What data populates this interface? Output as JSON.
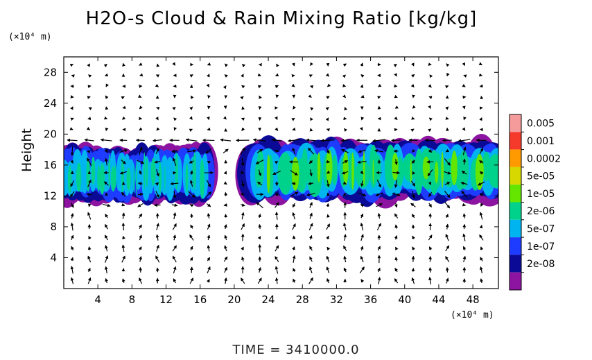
{
  "chart_data": {
    "type": "heatmap",
    "title": "H2O-s Cloud & Rain Mixing Ratio [kg/kg]",
    "ylabel": "Height",
    "xunit": "(×10⁴ m)",
    "yunit": "(×10⁴ m)",
    "xlim": [
      0,
      51
    ],
    "ylim": [
      0,
      30
    ],
    "xticks": [
      4,
      8,
      12,
      16,
      20,
      24,
      28,
      32,
      36,
      40,
      44,
      48
    ],
    "yticks": [
      4,
      8,
      12,
      16,
      20,
      24,
      28
    ],
    "colorbar": {
      "labels": [
        "0.005",
        "0.001",
        "0.0002",
        "5e-05",
        "1e-05",
        "2e-06",
        "5e-07",
        "1e-07",
        "2e-08"
      ],
      "colors": [
        "#f59b9b",
        "#f53a2b",
        "#ff9b00",
        "#d6d800",
        "#64e600",
        "#00d28c",
        "#00b4f0",
        "#1e3cff",
        "#0a0a96",
        "#8c14a0"
      ]
    },
    "cloud_bands": [
      {
        "x": [
          0,
          17
        ],
        "y": [
          11,
          18.5
        ]
      },
      {
        "x": [
          22,
          51
        ],
        "y": [
          11,
          19.5
        ]
      }
    ],
    "vectors": "wind field arrows on grid"
  },
  "footer": {
    "time_label": "TIME  =  3410000.0"
  }
}
